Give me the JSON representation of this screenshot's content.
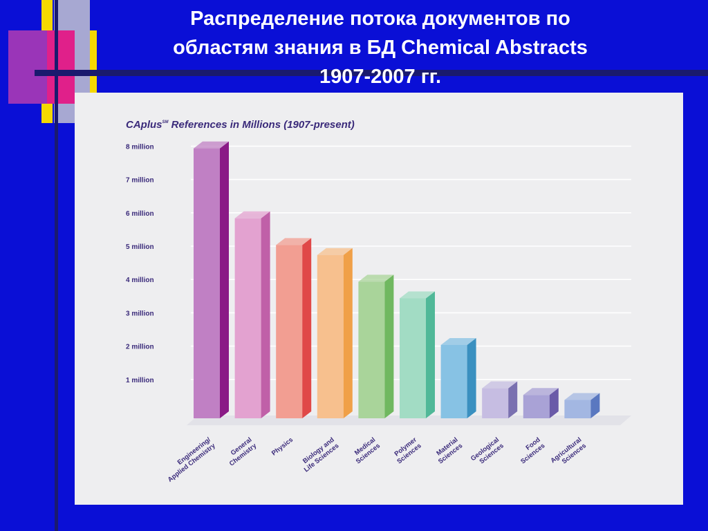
{
  "slide": {
    "title_lines": [
      "Распределение потока документов по",
      "областям знания в БД Chemical Abstracts",
      "1907-2007 гг."
    ]
  },
  "colors": {
    "background": "#0a0fd6",
    "panel": "#eeeef0",
    "deco_yellow": "#f5d800",
    "deco_magenta": "#e0208a",
    "deco_purple": "#9a35b8",
    "deco_navy": "#1a1a6e"
  },
  "chart_data": {
    "type": "bar",
    "title": "CAplus",
    "title_mark": "SM",
    "title_rest": " References in Millions (1907-present)",
    "ylim": [
      0,
      8.6
    ],
    "yticks": [
      {
        "value": 1,
        "label": "1 million"
      },
      {
        "value": 2,
        "label": "2 million"
      },
      {
        "value": 3,
        "label": "3 million"
      },
      {
        "value": 4,
        "label": "4 million"
      },
      {
        "value": 5,
        "label": "5 million"
      },
      {
        "value": 6,
        "label": "6 million"
      },
      {
        "value": 7,
        "label": "7 million"
      },
      {
        "value": 8,
        "label": "8 million"
      }
    ],
    "grid": true,
    "categories": [
      [
        "Engineering/",
        "Applied Chemistry"
      ],
      [
        "General",
        "Chemistry"
      ],
      [
        "Physics"
      ],
      [
        "Biology and",
        "Life Sciences"
      ],
      [
        "Medical",
        "Sciences"
      ],
      [
        "Polymer",
        "Sciences"
      ],
      [
        "Material",
        "Sciences"
      ],
      [
        "Geological",
        "Sciences"
      ],
      [
        "Food",
        "Sciences"
      ],
      [
        "Agricultural",
        "Sciences"
      ]
    ],
    "values": [
      8.1,
      6.0,
      5.2,
      4.9,
      4.1,
      3.6,
      2.2,
      0.9,
      0.7,
      0.55
    ],
    "bar_colors": [
      "#c080c4",
      "#e3a2d0",
      "#f29e92",
      "#f7c08e",
      "#a9d49a",
      "#a2dcc4",
      "#87c2e4",
      "#c6bde2",
      "#a9a2d6",
      "#a3b7e2"
    ],
    "bar_side_colors": [
      "#8a1a86",
      "#c060a8",
      "#e04848",
      "#f0a048",
      "#70b860",
      "#50b898",
      "#3a90c0",
      "#7a70b0",
      "#6a5aa8",
      "#5a78c0"
    ]
  }
}
